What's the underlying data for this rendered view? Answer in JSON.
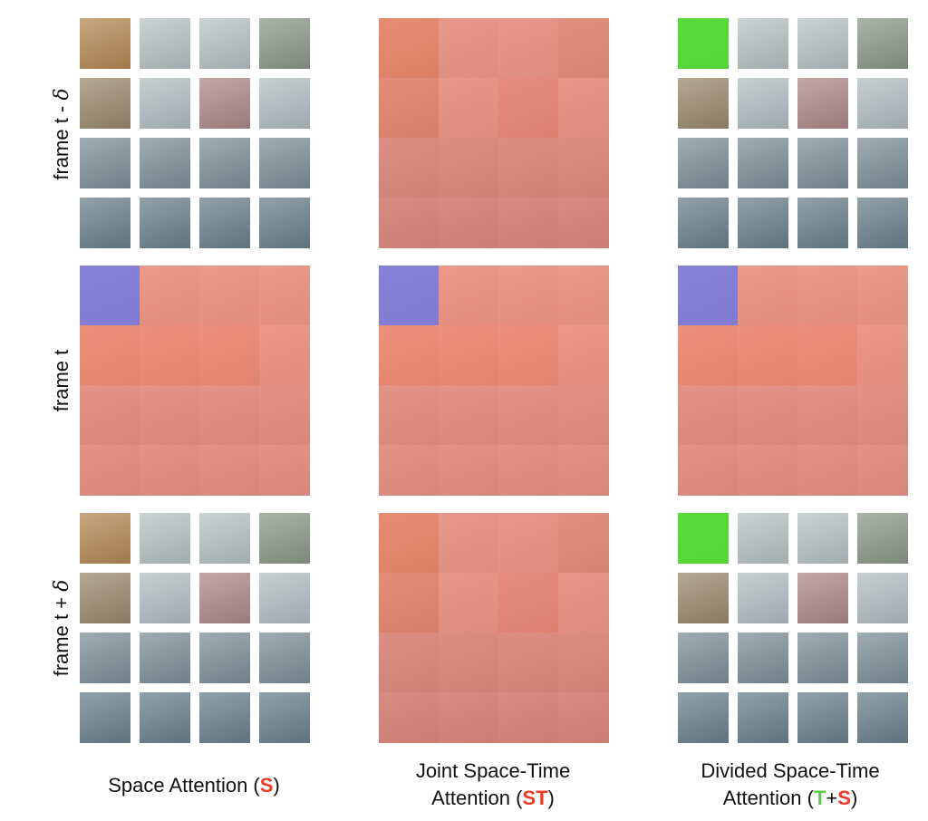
{
  "rows": [
    {
      "label_prefix": "frame t - ",
      "delta_symbol": "δ",
      "label": ""
    },
    {
      "label_prefix": "frame t",
      "delta_symbol": "",
      "label": ""
    },
    {
      "label_prefix": "frame t + ",
      "delta_symbol": "δ",
      "label": ""
    }
  ],
  "columns": [
    {
      "caption_line1": "",
      "caption_line2_prefix": "Space Attention (",
      "tag_parts": [
        {
          "text": "S",
          "color": "#f03a28"
        }
      ],
      "caption_line2_suffix": ")",
      "full_caption": "Space Attention (S)"
    },
    {
      "caption_line1": "Joint Space-Time",
      "caption_line2_prefix": "Attention (",
      "tag_parts": [
        {
          "text": "ST",
          "color": "#f03a28"
        }
      ],
      "caption_line2_suffix": ")",
      "full_caption": "Joint Space-Time Attention (ST)"
    },
    {
      "caption_line1": "Divided Space-Time",
      "caption_line2_prefix": "Attention (",
      "tag_parts": [
        {
          "text": "T",
          "color": "#5cc84a"
        },
        {
          "text": "+",
          "color": "#111111"
        },
        {
          "text": "S",
          "color": "#f03a28"
        }
      ],
      "caption_line2_suffix": ")",
      "full_caption": "Divided Space-Time Attention (T+S)"
    }
  ],
  "colors": {
    "spatial_attention": "#f4826f",
    "query_patch": "#7a7ae8",
    "temporal_attention": "#4ee034"
  },
  "attention_maps": {
    "S": {
      "frame t - δ": "none",
      "frame t": "all patches",
      "frame t + δ": "none",
      "query": "top-left patch, frame t"
    },
    "ST": {
      "frame t - δ": "all patches",
      "frame t": "all patches",
      "frame t + δ": "all patches",
      "query": "top-left patch, frame t"
    },
    "T+S": {
      "frame t - δ": "top-left patch",
      "frame t": "all patches",
      "frame t + δ": "top-left patch",
      "query": "top-left patch, frame t"
    }
  }
}
